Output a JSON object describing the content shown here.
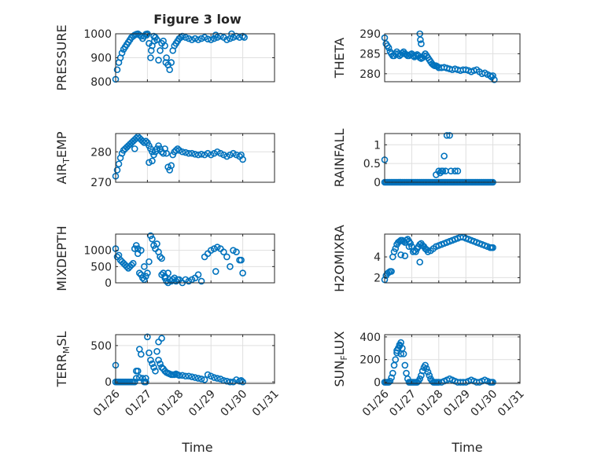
{
  "figure": {
    "title": "Figure 3 low",
    "xlabel": "Time",
    "marker_color": "#0072BD",
    "axis_color": "#262626",
    "grid_color": "#DFDFDF"
  },
  "chart_data": [
    {
      "type": "scatter",
      "ylabel": "PRESSURE",
      "ylim": [
        800,
        1000
      ],
      "yticks": [
        "800",
        "900",
        "1000"
      ],
      "xlim": [
        26,
        31
      ],
      "xticks": [
        26,
        27,
        28,
        29,
        30,
        31
      ],
      "xtick_labels": [
        "",
        "",
        "",
        "",
        "",
        ""
      ],
      "grid": true,
      "x": [
        26.0,
        26.05,
        26.1,
        26.15,
        26.2,
        26.25,
        26.3,
        26.35,
        26.4,
        26.45,
        26.5,
        26.55,
        26.6,
        26.65,
        26.7,
        26.75,
        26.8,
        26.85,
        26.9,
        26.95,
        27.0,
        27.05,
        27.1,
        27.15,
        27.2,
        27.25,
        27.3,
        27.35,
        27.4,
        27.45,
        27.5,
        27.55,
        27.6,
        27.65,
        27.7,
        27.75,
        27.8,
        27.85,
        27.9,
        27.95,
        28.0,
        28.05,
        28.1,
        28.2,
        28.3,
        28.4,
        28.5,
        28.6,
        28.7,
        28.8,
        28.9,
        29.0,
        29.1,
        29.2,
        29.3,
        29.4,
        29.5,
        29.6,
        29.7,
        29.8,
        29.9,
        30.0,
        30.05,
        29.15,
        29.65,
        26.98,
        27.12,
        27.22,
        27.58
      ],
      "y": [
        810,
        850,
        880,
        900,
        920,
        935,
        945,
        955,
        965,
        975,
        985,
        990,
        995,
        998,
        1000,
        995,
        990,
        980,
        990,
        998,
        1000,
        960,
        900,
        950,
        990,
        985,
        975,
        890,
        930,
        960,
        970,
        950,
        900,
        870,
        850,
        880,
        930,
        950,
        960,
        970,
        980,
        985,
        990,
        985,
        980,
        975,
        980,
        975,
        980,
        985,
        978,
        975,
        980,
        985,
        990,
        985,
        975,
        980,
        985,
        990,
        985,
        990,
        985,
        995,
        1000,
        995,
        930,
        970,
        880
      ]
    },
    {
      "type": "scatter",
      "ylabel": "THETA",
      "ylim": [
        278,
        290
      ],
      "yticks": [
        "280",
        "285",
        "290"
      ],
      "xlim": [
        26,
        31
      ],
      "xticks": [
        26,
        27,
        28,
        29,
        30,
        31
      ],
      "xtick_labels": [
        "",
        "",
        "",
        "",
        "",
        ""
      ],
      "grid": true,
      "x": [
        26.0,
        26.05,
        26.1,
        26.15,
        26.2,
        26.25,
        26.3,
        26.35,
        26.4,
        26.45,
        26.5,
        26.55,
        26.6,
        26.65,
        26.7,
        26.75,
        26.8,
        26.85,
        26.9,
        26.95,
        27.0,
        27.05,
        27.1,
        27.15,
        27.2,
        27.25,
        27.3,
        27.35,
        27.4,
        27.45,
        27.5,
        27.55,
        27.6,
        27.65,
        27.7,
        27.75,
        27.8,
        27.85,
        27.9,
        27.95,
        28.0,
        28.1,
        28.2,
        28.3,
        28.4,
        28.5,
        28.6,
        28.7,
        28.8,
        28.9,
        29.0,
        29.1,
        29.2,
        29.3,
        29.4,
        29.5,
        29.6,
        29.7,
        29.8,
        29.9,
        29.95,
        30.0,
        30.05,
        27.3,
        27.32,
        27.35
      ],
      "y": [
        289,
        287.5,
        287,
        286.5,
        285.5,
        285,
        284.5,
        284.5,
        285,
        285.5,
        285,
        284.5,
        284.8,
        285.2,
        285.5,
        285,
        284.8,
        284.5,
        284.5,
        284.8,
        285,
        284.5,
        284.2,
        284.5,
        284.8,
        284.5,
        284,
        283.8,
        284,
        284.5,
        285,
        284.5,
        284,
        283.5,
        283,
        282.5,
        282.2,
        282,
        282,
        281.8,
        281.5,
        281.5,
        281.6,
        281.4,
        281.2,
        281,
        281.2,
        281,
        280.8,
        281,
        281,
        280.8,
        280.5,
        280.8,
        281,
        280.5,
        280,
        280.2,
        279.8,
        279.5,
        279.2,
        279.5,
        278.5,
        290,
        288.5,
        287.5
      ]
    },
    {
      "type": "scatter",
      "ylabel": "AIR",
      "ylabel_sub": "T",
      "ylabel_tail": "EMP",
      "ylim": [
        270,
        286
      ],
      "yticks": [
        "270",
        "280"
      ],
      "xlim": [
        26,
        31
      ],
      "xticks": [
        26,
        27,
        28,
        29,
        30,
        31
      ],
      "xtick_labels": [
        "",
        "",
        "",
        "",
        "",
        ""
      ],
      "grid": true,
      "x": [
        26.0,
        26.05,
        26.1,
        26.15,
        26.2,
        26.25,
        26.3,
        26.35,
        26.4,
        26.45,
        26.5,
        26.55,
        26.6,
        26.65,
        26.7,
        26.75,
        26.8,
        26.85,
        26.9,
        26.95,
        27.0,
        27.05,
        27.1,
        27.15,
        27.2,
        27.25,
        27.3,
        27.35,
        27.4,
        27.45,
        27.5,
        27.55,
        27.6,
        27.65,
        27.7,
        27.75,
        27.8,
        27.85,
        27.9,
        27.95,
        28.0,
        28.1,
        28.2,
        28.3,
        28.4,
        28.5,
        28.6,
        28.7,
        28.8,
        28.9,
        29.0,
        29.1,
        29.2,
        29.3,
        29.4,
        29.5,
        29.6,
        29.7,
        29.8,
        29.9,
        29.95,
        30.0,
        26.6,
        27.15,
        27.05
      ],
      "y": [
        272,
        274,
        276,
        278,
        279.5,
        280.5,
        281,
        281.5,
        282,
        282.5,
        283,
        283.5,
        284,
        284.5,
        285,
        284.5,
        284,
        283.5,
        283,
        283.5,
        283,
        282,
        281,
        280,
        279,
        280,
        281,
        282,
        281,
        280,
        279.5,
        281,
        279.5,
        275,
        274,
        275.5,
        279,
        280,
        280.5,
        281,
        280.5,
        280,
        279.8,
        279.5,
        279.5,
        279.2,
        279,
        279.2,
        279,
        279.5,
        279,
        279.5,
        280,
        279.5,
        279,
        278.5,
        279,
        279.5,
        279,
        278.5,
        279,
        277.5,
        281,
        277,
        276.5
      ]
    },
    {
      "type": "scatter",
      "ylabel": "RAINFALL",
      "ylim": [
        0,
        1.3
      ],
      "yticks": [
        "0",
        "0.5",
        "1"
      ],
      "xlim": [
        26,
        31
      ],
      "xticks": [
        26,
        27,
        28,
        29,
        30,
        31
      ],
      "xtick_labels": [
        "",
        "",
        "",
        "",
        "",
        ""
      ],
      "grid": true,
      "x": [
        26.0,
        26.05,
        26.1,
        26.15,
        26.2,
        26.25,
        26.3,
        26.35,
        26.4,
        26.45,
        26.5,
        26.55,
        26.6,
        26.65,
        26.7,
        26.75,
        26.8,
        26.85,
        26.9,
        26.95,
        27.0,
        27.05,
        27.1,
        27.15,
        27.2,
        27.25,
        27.3,
        27.35,
        27.4,
        27.45,
        27.5,
        27.55,
        27.6,
        27.65,
        27.7,
        27.75,
        27.8,
        27.85,
        27.9,
        27.95,
        28.0,
        28.05,
        28.1,
        28.15,
        28.2,
        28.25,
        28.3,
        28.35,
        28.4,
        28.45,
        28.5,
        28.55,
        28.6,
        28.65,
        28.7,
        28.75,
        28.8,
        28.85,
        28.9,
        28.95,
        29.0,
        29.05,
        29.1,
        29.15,
        29.2,
        29.25,
        29.3,
        29.35,
        29.4,
        29.45,
        29.5,
        29.55,
        29.6,
        29.65,
        29.7,
        29.75,
        29.8,
        29.85,
        29.9,
        29.95,
        30.0,
        26.0,
        27.9,
        28.0,
        28.1,
        28.2,
        28.3,
        28.4,
        28.45,
        28.05,
        28.15,
        28.25,
        28.6,
        28.7
      ],
      "y": [
        0,
        0,
        0,
        0,
        0,
        0,
        0,
        0,
        0,
        0,
        0,
        0,
        0,
        0,
        0,
        0,
        0,
        0,
        0,
        0,
        0,
        0,
        0,
        0,
        0,
        0,
        0,
        0,
        0,
        0,
        0,
        0,
        0,
        0,
        0,
        0,
        0,
        0,
        0,
        0,
        0,
        0,
        0,
        0,
        0,
        0,
        0,
        0,
        0,
        0,
        0,
        0,
        0,
        0,
        0,
        0,
        0,
        0,
        0,
        0,
        0,
        0,
        0,
        0,
        0,
        0,
        0,
        0,
        0,
        0,
        0,
        0,
        0,
        0,
        0,
        0,
        0,
        0,
        0,
        0,
        0,
        0.6,
        0.2,
        0.3,
        0.3,
        0.7,
        1.25,
        1.25,
        0.3,
        0.25,
        0.3,
        0.3,
        0.3,
        0.3
      ]
    },
    {
      "type": "scatter",
      "ylabel": "MIXDEPTH",
      "ylim": [
        0,
        1500
      ],
      "yticks": [
        "0",
        "500",
        "1000"
      ],
      "xlim": [
        26,
        31
      ],
      "xticks": [
        26,
        27,
        28,
        29,
        30,
        31
      ],
      "xtick_labels": [
        "",
        "",
        "",
        "",
        "",
        ""
      ],
      "grid": true,
      "x": [
        26.0,
        26.05,
        26.1,
        26.15,
        26.2,
        26.25,
        26.3,
        26.35,
        26.4,
        26.45,
        26.5,
        26.55,
        26.6,
        26.65,
        26.7,
        26.75,
        26.8,
        26.85,
        26.9,
        26.95,
        27.0,
        27.05,
        27.1,
        27.15,
        27.2,
        27.25,
        27.3,
        27.35,
        27.4,
        27.45,
        27.5,
        27.55,
        27.6,
        27.65,
        27.7,
        27.75,
        27.8,
        27.85,
        27.9,
        27.95,
        28.0,
        28.1,
        28.2,
        28.3,
        28.4,
        28.5,
        28.6,
        28.7,
        28.8,
        28.9,
        29.0,
        29.1,
        29.2,
        29.3,
        29.4,
        29.5,
        29.6,
        29.7,
        29.8,
        29.9,
        29.95,
        30.0,
        26.7,
        26.8,
        26.9,
        27.55,
        27.65,
        27.45,
        29.15
      ],
      "y": [
        1050,
        800,
        850,
        700,
        650,
        600,
        550,
        500,
        450,
        500,
        550,
        600,
        1050,
        1150,
        900,
        300,
        250,
        150,
        100,
        200,
        300,
        650,
        1450,
        1350,
        1150,
        1050,
        1200,
        950,
        800,
        750,
        300,
        200,
        50,
        0,
        100,
        50,
        100,
        150,
        50,
        100,
        100,
        0,
        100,
        50,
        100,
        150,
        250,
        50,
        800,
        900,
        1000,
        1050,
        1100,
        1050,
        950,
        800,
        500,
        1000,
        950,
        700,
        700,
        300,
        1050,
        1000,
        500,
        150,
        300,
        250,
        350
      ]
    },
    {
      "type": "scatter",
      "ylabel": "H2OMIXRA",
      "ylim": [
        1.5,
        6.2
      ],
      "yticks": [
        "2",
        "4"
      ],
      "xlim": [
        26,
        31
      ],
      "xticks": [
        26,
        27,
        28,
        29,
        30,
        31
      ],
      "xtick_labels": [
        "",
        "",
        "",
        "",
        "",
        ""
      ],
      "grid": true,
      "x": [
        26.0,
        26.05,
        26.1,
        26.15,
        26.2,
        26.25,
        26.3,
        26.35,
        26.4,
        26.45,
        26.5,
        26.55,
        26.6,
        26.65,
        26.7,
        26.75,
        26.8,
        26.85,
        26.9,
        26.95,
        27.0,
        27.05,
        27.1,
        27.15,
        27.2,
        27.25,
        27.3,
        27.35,
        27.4,
        27.45,
        27.5,
        27.55,
        27.6,
        27.7,
        27.8,
        27.9,
        28.0,
        28.1,
        28.2,
        28.3,
        28.4,
        28.5,
        28.6,
        28.7,
        28.8,
        28.9,
        29.0,
        29.1,
        29.2,
        29.3,
        29.4,
        29.5,
        29.6,
        29.7,
        29.8,
        29.9,
        29.95,
        30.0,
        26.6,
        26.75,
        26.9,
        27.3
      ],
      "y": [
        1.8,
        2.2,
        2.4,
        2.5,
        2.6,
        2.6,
        4.0,
        4.5,
        4.8,
        5.2,
        5.4,
        5.5,
        5.6,
        5.6,
        5.5,
        5.4,
        5.6,
        5.7,
        5.5,
        5.3,
        5.0,
        4.5,
        4.6,
        4.5,
        4.8,
        5.0,
        5.2,
        5.3,
        5.1,
        5.0,
        4.8,
        4.7,
        4.5,
        4.6,
        4.8,
        5.0,
        5.1,
        5.2,
        5.3,
        5.4,
        5.5,
        5.6,
        5.7,
        5.8,
        5.9,
        5.9,
        5.8,
        5.7,
        5.6,
        5.5,
        5.4,
        5.3,
        5.2,
        5.1,
        5.0,
        4.9,
        4.9,
        4.9,
        4.2,
        4.1,
        5.0,
        3.5
      ]
    },
    {
      "type": "scatter",
      "ylabel": "TERR",
      "ylabel_sub": "M",
      "ylabel_tail": "SL",
      "ylim": [
        -20,
        650
      ],
      "yticks": [
        "0",
        "500"
      ],
      "xlim": [
        26,
        31
      ],
      "xticks": [
        26,
        27,
        28,
        29,
        30,
        31
      ],
      "xtick_labels": [
        "01/26",
        "01/27",
        "01/28",
        "01/29",
        "01/30",
        "01/31"
      ],
      "grid": true,
      "x": [
        26.0,
        26.05,
        26.1,
        26.15,
        26.2,
        26.25,
        26.3,
        26.35,
        26.4,
        26.45,
        26.5,
        26.55,
        26.6,
        26.65,
        26.7,
        26.75,
        26.8,
        26.85,
        26.9,
        26.95,
        27.0,
        27.05,
        27.1,
        27.15,
        27.2,
        27.25,
        27.3,
        27.35,
        27.4,
        27.45,
        27.5,
        27.55,
        27.6,
        27.65,
        27.7,
        27.75,
        27.8,
        27.85,
        27.9,
        27.95,
        28.0,
        28.1,
        28.2,
        28.3,
        28.4,
        28.5,
        28.6,
        28.7,
        28.8,
        28.9,
        29.0,
        29.1,
        29.2,
        29.3,
        29.4,
        29.5,
        29.6,
        29.7,
        29.8,
        29.9,
        29.95,
        30.0,
        26.0,
        26.65,
        26.75,
        26.95,
        27.35,
        27.45
      ],
      "y": [
        230,
        0,
        0,
        0,
        0,
        0,
        0,
        0,
        0,
        0,
        0,
        0,
        0,
        50,
        150,
        450,
        380,
        50,
        0,
        0,
        620,
        400,
        300,
        250,
        200,
        150,
        420,
        300,
        250,
        200,
        180,
        150,
        130,
        120,
        110,
        100,
        100,
        100,
        110,
        100,
        90,
        90,
        80,
        80,
        70,
        60,
        50,
        40,
        30,
        100,
        80,
        60,
        50,
        40,
        20,
        10,
        0,
        0,
        30,
        10,
        20,
        0,
        0,
        150,
        60,
        50,
        550,
        600
      ]
    },
    {
      "type": "scatter",
      "ylabel": "SUN",
      "ylabel_sub": "F",
      "ylabel_tail": "LUX",
      "ylim": [
        -10,
        420
      ],
      "yticks": [
        "0",
        "200",
        "400"
      ],
      "xlim": [
        26,
        31
      ],
      "xticks": [
        26,
        27,
        28,
        29,
        30,
        31
      ],
      "xtick_labels": [
        "01/26",
        "01/27",
        "01/28",
        "01/29",
        "01/30",
        "01/31"
      ],
      "grid": true,
      "x": [
        26.0,
        26.05,
        26.1,
        26.15,
        26.2,
        26.25,
        26.3,
        26.35,
        26.4,
        26.45,
        26.5,
        26.55,
        26.6,
        26.65,
        26.7,
        26.75,
        26.8,
        26.85,
        26.9,
        26.95,
        27.0,
        27.05,
        27.1,
        27.15,
        27.2,
        27.25,
        27.3,
        27.35,
        27.4,
        27.45,
        27.5,
        27.55,
        27.6,
        27.65,
        27.7,
        27.75,
        27.8,
        27.85,
        27.9,
        27.95,
        28.0,
        28.1,
        28.2,
        28.3,
        28.4,
        28.5,
        28.6,
        28.7,
        28.8,
        28.9,
        29.0,
        29.1,
        29.2,
        29.3,
        29.4,
        29.5,
        29.6,
        29.7,
        29.8,
        29.9,
        29.95,
        30.0,
        26.45,
        26.55,
        26.6
      ],
      "y": [
        0,
        0,
        0,
        0,
        10,
        40,
        80,
        150,
        200,
        260,
        300,
        330,
        350,
        300,
        250,
        150,
        80,
        30,
        0,
        0,
        0,
        0,
        0,
        0,
        0,
        10,
        30,
        60,
        100,
        130,
        150,
        120,
        90,
        60,
        30,
        10,
        0,
        0,
        0,
        0,
        0,
        0,
        10,
        20,
        30,
        20,
        10,
        0,
        0,
        0,
        0,
        10,
        20,
        10,
        0,
        0,
        10,
        20,
        10,
        0,
        0,
        0,
        280,
        320,
        250
      ]
    }
  ]
}
